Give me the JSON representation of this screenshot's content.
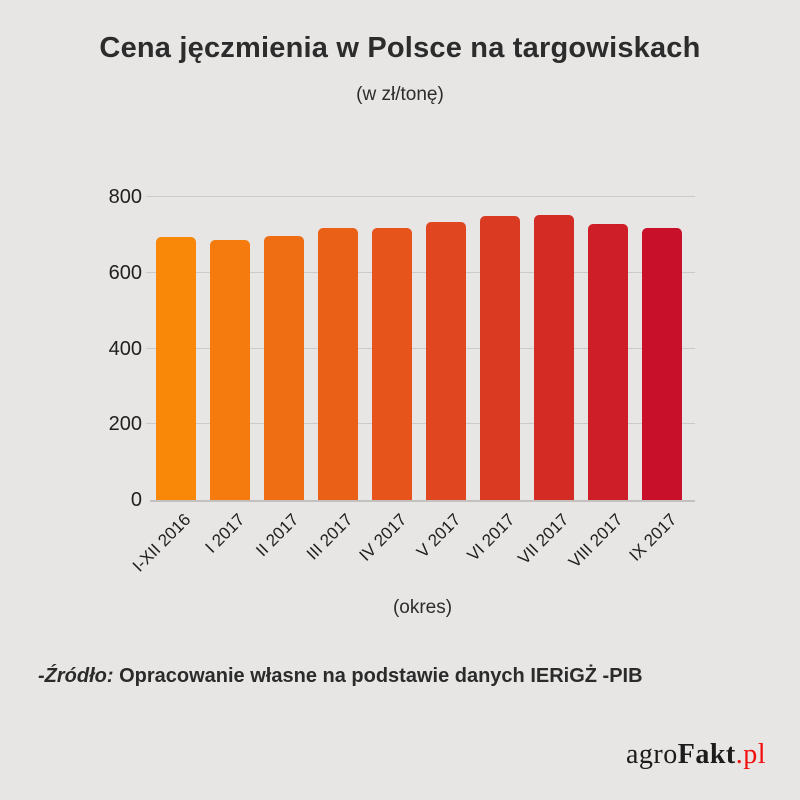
{
  "title": "Cena jęczmienia w Polsce na targowiskach",
  "subtitle": "(w zł/tonę)",
  "source_note": {
    "prefix": "-Źródło:",
    "text": " Opracowanie własne na podstawie danych IERiGŻ -PIB"
  },
  "logo": {
    "part1": "agro",
    "part2": "Fakt",
    "part3": ".pl",
    "accent_color": "#f2100f"
  },
  "colors": {
    "background": "#e7e6e4",
    "text": "#2c2c2c",
    "gridline": "#cbcac8",
    "axis_line": "#c2c1bf"
  },
  "chart_data": {
    "type": "bar",
    "title": "Cena jęczmienia w Polsce na targowiskach",
    "subtitle": "(w zł/tonę)",
    "xlabel": "(okres)",
    "ylabel": "",
    "ylim": [
      0,
      800
    ],
    "yticks": [
      0,
      200,
      400,
      600,
      800
    ],
    "grid": true,
    "legend": false,
    "categories": [
      "I-XII 2016",
      "I 2017",
      "II 2017",
      "III 2017",
      "IV 2017",
      "V 2017",
      "VI 2017",
      "VII 2017",
      "VIII 2017",
      "IX 2017"
    ],
    "values": [
      694,
      686,
      698,
      717,
      719,
      734,
      750,
      753,
      730,
      717
    ],
    "bar_colors": [
      "#f98808",
      "#f57b0e",
      "#f06e13",
      "#eb6017",
      "#e6531b",
      "#e0461f",
      "#da3922",
      "#d42c25",
      "#ce1f28",
      "#c8102b"
    ]
  }
}
